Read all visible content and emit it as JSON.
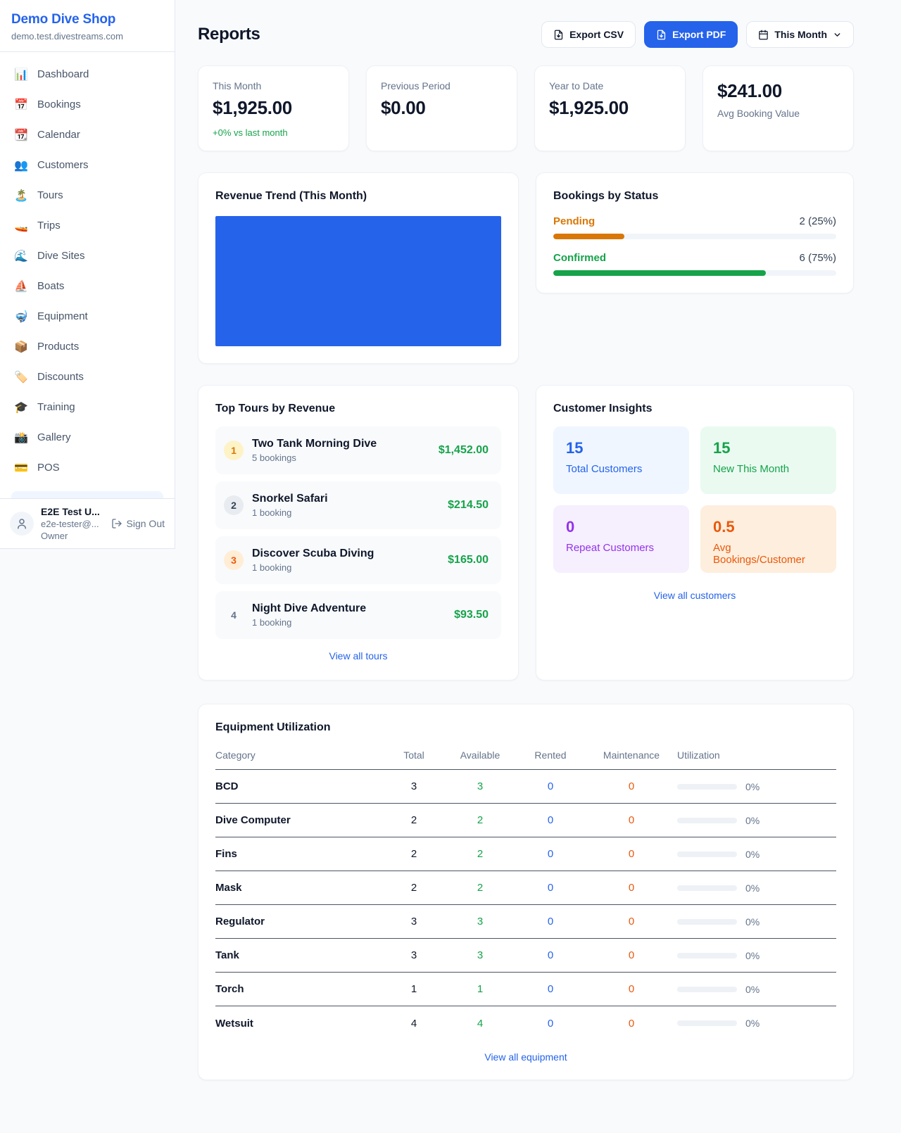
{
  "colors": {
    "accent": "#2563eb",
    "success": "#16a34a",
    "pending_orange": "#d97706",
    "maintenance_orange": "#ea580c",
    "purple": "#9333ea",
    "chart_bar_blue": "#2563eb"
  },
  "brand": {
    "name": "Demo Dive Shop",
    "domain": "demo.test.divestreams.com"
  },
  "sidebar": {
    "items": [
      {
        "icon": "📊",
        "label": "Dashboard"
      },
      {
        "icon": "📅",
        "label": "Bookings"
      },
      {
        "icon": "📆",
        "label": "Calendar"
      },
      {
        "icon": "👥",
        "label": "Customers"
      },
      {
        "icon": "🏝️",
        "label": "Tours"
      },
      {
        "icon": "🚤",
        "label": "Trips"
      },
      {
        "icon": "🌊",
        "label": "Dive Sites"
      },
      {
        "icon": "⛵",
        "label": "Boats"
      },
      {
        "icon": "🤿",
        "label": "Equipment"
      },
      {
        "icon": "📦",
        "label": "Products"
      },
      {
        "icon": "🏷️",
        "label": "Discounts"
      },
      {
        "icon": "🎓",
        "label": "Training"
      },
      {
        "icon": "📸",
        "label": "Gallery"
      },
      {
        "icon": "💳",
        "label": "POS"
      }
    ]
  },
  "user": {
    "name": "E2E Test U...",
    "email": "e2e-tester@...",
    "role": "Owner",
    "sign_out": "Sign Out"
  },
  "header": {
    "title": "Reports",
    "export_csv": "Export CSV",
    "export_pdf": "Export PDF",
    "period": "This Month"
  },
  "stats": [
    {
      "label": "This Month",
      "value": "$1,925.00",
      "note": "+0% vs last month"
    },
    {
      "label": "Previous Period",
      "value": "$0.00"
    },
    {
      "label": "Year to Date",
      "value": "$1,925.00"
    },
    {
      "label": "Avg Booking Value",
      "value": "$241.00"
    }
  ],
  "revenue_trend": {
    "title": "Revenue Trend (This Month)"
  },
  "chart_data": {
    "type": "bar",
    "title": "Revenue Trend (This Month)",
    "categories": [
      "This Month"
    ],
    "values": [
      1925
    ],
    "bar_color": "#2563eb",
    "note": "Single solid blue bar fills the entire plot area; no axes, ticks or labels visible"
  },
  "bookings_by_status": {
    "title": "Bookings by Status",
    "rows": [
      {
        "label": "Pending",
        "count_text": "2 (25%)",
        "pct": 25,
        "color": "#d97706"
      },
      {
        "label": "Confirmed",
        "count_text": "6 (75%)",
        "pct": 75,
        "color": "#16a34a"
      }
    ]
  },
  "top_tours": {
    "title": "Top Tours by Revenue",
    "items": [
      {
        "rank": "1",
        "name": "Two Tank Morning Dive",
        "bookings": "5 bookings",
        "amount": "$1,452.00",
        "badge_bg": "#fef3c7",
        "badge_fg": "#d97706"
      },
      {
        "rank": "2",
        "name": "Snorkel Safari",
        "bookings": "1 booking",
        "amount": "$214.50",
        "badge_bg": "#e8ecf1",
        "badge_fg": "#334155"
      },
      {
        "rank": "3",
        "name": "Discover Scuba Diving",
        "bookings": "1 booking",
        "amount": "$165.00",
        "badge_bg": "#ffedd5",
        "badge_fg": "#ea580c"
      },
      {
        "rank": "4",
        "name": "Night Dive Adventure",
        "bookings": "1 booking",
        "amount": "$93.50",
        "badge_bg": "transparent",
        "badge_fg": "#64748b"
      }
    ],
    "view_all": "View all tours"
  },
  "customer_insights": {
    "title": "Customer Insights",
    "tiles": [
      {
        "value": "15",
        "label": "Total Customers",
        "bg": "#eff6ff",
        "fg": "#2563eb"
      },
      {
        "value": "15",
        "label": "New This Month",
        "bg": "#eafaf1",
        "fg": "#16a34a"
      },
      {
        "value": "0",
        "label": "Repeat Customers",
        "bg": "#f6effe",
        "fg": "#9333ea"
      },
      {
        "value": "0.5",
        "label": "Avg Bookings/Customer",
        "bg": "#feeedd",
        "fg": "#ea580c"
      }
    ],
    "view_all": "View all customers"
  },
  "equipment": {
    "title": "Equipment Utilization",
    "columns": [
      "Category",
      "Total",
      "Available",
      "Rented",
      "Maintenance",
      "Utilization"
    ],
    "rows": [
      {
        "category": "BCD",
        "total": "3",
        "available": "3",
        "rented": "0",
        "maintenance": "0",
        "utilization": "0%"
      },
      {
        "category": "Dive Computer",
        "total": "2",
        "available": "2",
        "rented": "0",
        "maintenance": "0",
        "utilization": "0%"
      },
      {
        "category": "Fins",
        "total": "2",
        "available": "2",
        "rented": "0",
        "maintenance": "0",
        "utilization": "0%"
      },
      {
        "category": "Mask",
        "total": "2",
        "available": "2",
        "rented": "0",
        "maintenance": "0",
        "utilization": "0%"
      },
      {
        "category": "Regulator",
        "total": "3",
        "available": "3",
        "rented": "0",
        "maintenance": "0",
        "utilization": "0%"
      },
      {
        "category": "Tank",
        "total": "3",
        "available": "3",
        "rented": "0",
        "maintenance": "0",
        "utilization": "0%"
      },
      {
        "category": "Torch",
        "total": "1",
        "available": "1",
        "rented": "0",
        "maintenance": "0",
        "utilization": "0%"
      },
      {
        "category": "Wetsuit",
        "total": "4",
        "available": "4",
        "rented": "0",
        "maintenance": "0",
        "utilization": "0%"
      }
    ],
    "view_all": "View all equipment"
  }
}
